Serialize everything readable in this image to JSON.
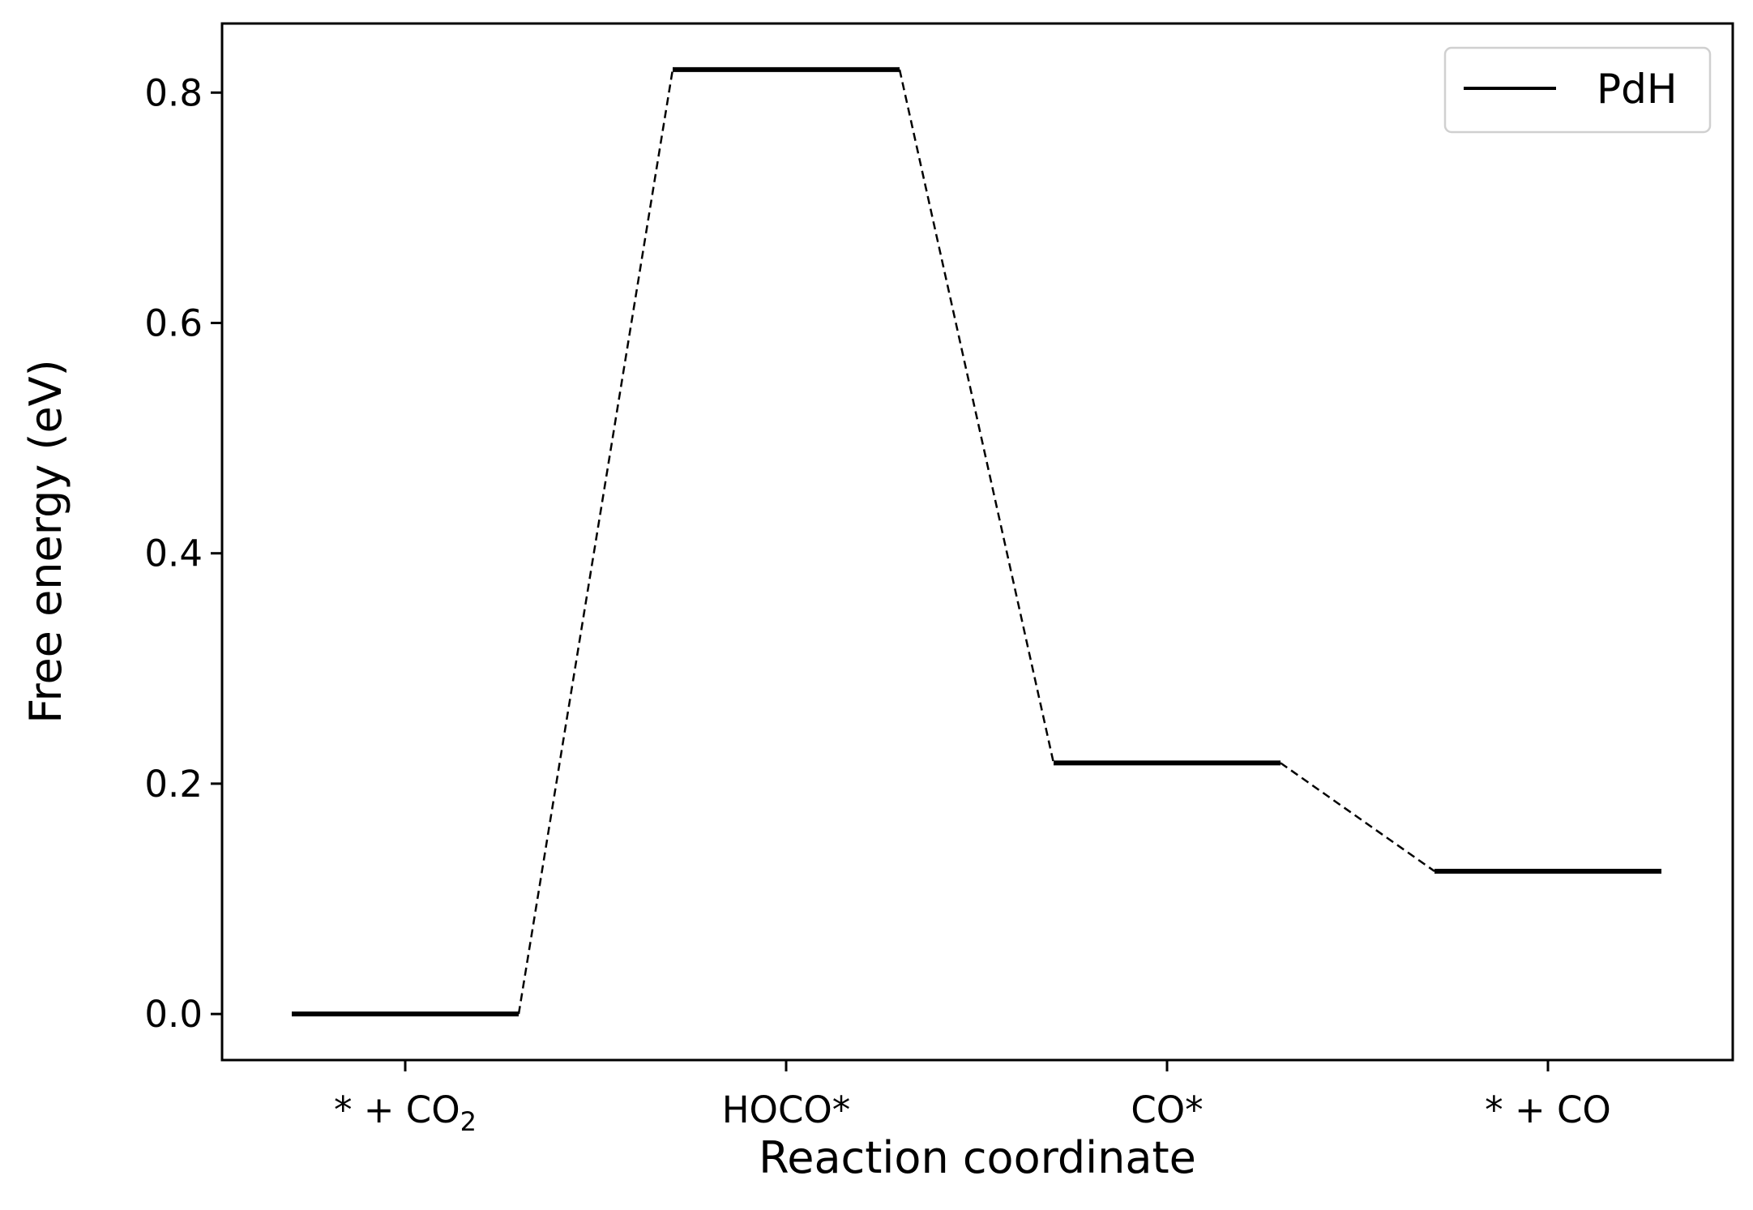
{
  "chart_data": {
    "type": "line",
    "xlabel": "Reaction coordinate",
    "ylabel": "Free energy (eV)",
    "categories": [
      {
        "base": "* + CO",
        "sub": "2"
      },
      {
        "base": "HOCO*",
        "sub": ""
      },
      {
        "base": "CO*",
        "sub": ""
      },
      {
        "base": "* + CO",
        "sub": ""
      }
    ],
    "ylim": [
      -0.04,
      0.86
    ],
    "yticks": [
      "0.0",
      "0.2",
      "0.4",
      "0.6",
      "0.8"
    ],
    "series": [
      {
        "name": "PdH",
        "values": [
          0.0,
          0.82,
          0.218,
          0.124
        ],
        "color": "#000000"
      }
    ],
    "connectors": "dashed",
    "legend": "top-right",
    "grid": false
  }
}
